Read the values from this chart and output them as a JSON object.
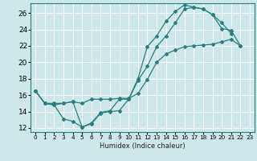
{
  "title": "",
  "xlabel": "Humidex (Indice chaleur)",
  "bg_color": "#cce8e8",
  "grid_color": "#ffffff",
  "line_color": "#2d7d7d",
  "xlim": [
    -0.5,
    23.5
  ],
  "ylim": [
    11.5,
    27.2
  ],
  "xticks": [
    0,
    1,
    2,
    3,
    4,
    5,
    6,
    7,
    8,
    9,
    10,
    11,
    12,
    13,
    14,
    15,
    16,
    17,
    18,
    19,
    20,
    21,
    22,
    23
  ],
  "yticks": [
    12,
    14,
    16,
    18,
    20,
    22,
    24,
    26
  ],
  "line1_x": [
    0,
    1,
    2,
    3,
    4,
    5,
    6,
    7,
    8,
    9,
    10,
    11,
    12,
    13,
    14,
    15,
    16,
    17,
    18,
    19,
    20,
    21,
    22,
    23
  ],
  "line1_y": [
    16.5,
    15.0,
    14.8,
    15.0,
    15.2,
    12.1,
    12.5,
    13.8,
    14.0,
    14.1,
    15.5,
    17.8,
    19.5,
    21.9,
    23.2,
    24.8,
    26.5,
    26.7,
    26.5,
    25.8,
    24.1,
    23.9,
    22.0,
    null
  ],
  "line2_x": [
    0,
    1,
    2,
    3,
    4,
    5,
    6,
    7,
    8,
    9,
    10,
    11,
    12,
    13,
    14,
    15,
    16,
    17,
    18,
    19,
    20,
    21,
    22,
    23
  ],
  "line2_y": [
    16.5,
    15.0,
    14.8,
    13.1,
    12.8,
    12.1,
    12.6,
    13.9,
    14.1,
    15.5,
    15.5,
    18.0,
    21.9,
    23.2,
    25.0,
    26.2,
    27.0,
    26.7,
    26.5,
    25.8,
    24.8,
    23.5,
    null,
    null
  ],
  "line3_x": [
    0,
    1,
    2,
    3,
    4,
    5,
    6,
    7,
    8,
    9,
    10,
    11,
    12,
    13,
    14,
    15,
    16,
    17,
    18,
    19,
    20,
    21,
    22,
    23
  ],
  "line3_y": [
    16.5,
    15.0,
    15.0,
    15.0,
    15.2,
    15.0,
    15.5,
    15.5,
    15.5,
    15.6,
    15.6,
    16.2,
    17.9,
    20.0,
    21.0,
    21.5,
    21.9,
    22.0,
    22.1,
    22.2,
    22.5,
    22.8,
    22.0,
    null
  ],
  "xlabel_fontsize": 6.0,
  "ytick_fontsize": 6.5,
  "xtick_fontsize": 5.2
}
